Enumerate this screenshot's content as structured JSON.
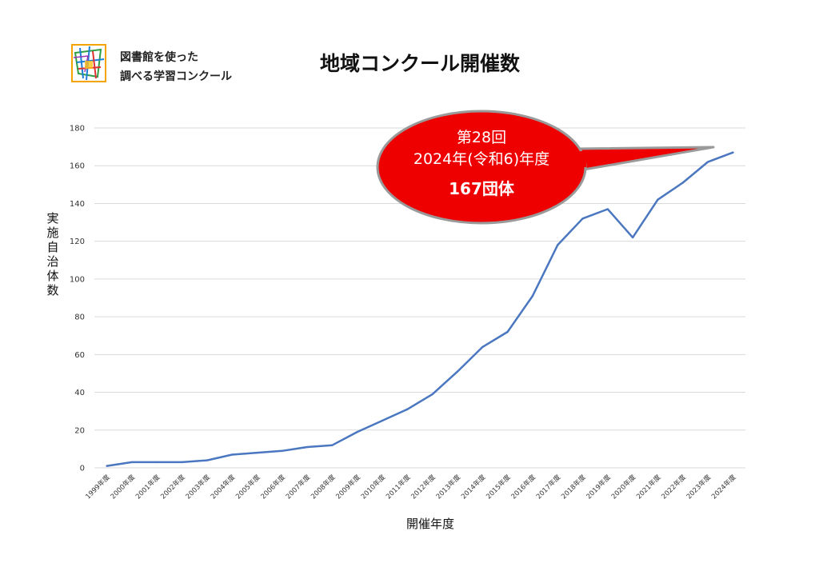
{
  "brand": {
    "line1": "図書館を使った",
    "line2": "調べる学習コンクール"
  },
  "title": "地域コンクール開催数",
  "callout": {
    "line1": "第28回",
    "line2": "2024年(令和6)年度",
    "line3": "167団体",
    "fill_color": "#ee0000"
  },
  "chart_data": {
    "type": "line",
    "title": "地域コンクール開催数",
    "xlabel": "開催年度",
    "ylabel": "実施自治体数",
    "ylim": [
      0,
      180
    ],
    "yticks": [
      0,
      20,
      40,
      60,
      80,
      100,
      120,
      140,
      160,
      180
    ],
    "grid": true,
    "categories": [
      "1999年度",
      "2000年度",
      "2001年度",
      "2002年度",
      "2003年度",
      "2004年度",
      "2005年度",
      "2006年度",
      "2007年度",
      "2008年度",
      "2009年度",
      "2010年度",
      "2011年度",
      "2012年度",
      "2013年度",
      "2014年度",
      "2015年度",
      "2016年度",
      "2017年度",
      "2018年度",
      "2019年度",
      "2020年度",
      "2021年度",
      "2022年度",
      "2023年度",
      "2024年度"
    ],
    "series": [
      {
        "color": "#4a77c0",
        "values": [
          1,
          3,
          3,
          3,
          4,
          7,
          8,
          9,
          11,
          12,
          19,
          25,
          31,
          39,
          51,
          64,
          72,
          91,
          118,
          132,
          137,
          122,
          142,
          151,
          162,
          167
        ]
      }
    ]
  }
}
